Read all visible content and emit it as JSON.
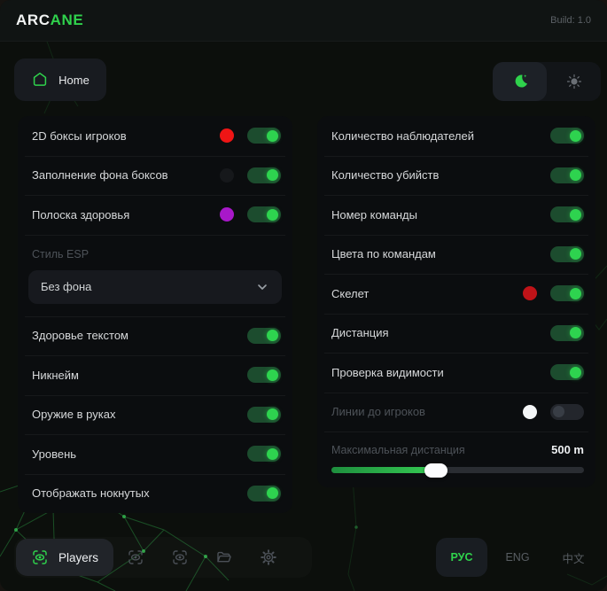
{
  "header": {
    "brand_primary": "ARC",
    "brand_accent": "ANE",
    "build_label": "Build: 1.0"
  },
  "nav": {
    "home_label": "Home"
  },
  "panels": {
    "left": {
      "items": [
        {
          "type": "toggle",
          "label": "2D боксы игроков",
          "color": "#ef1515",
          "on": true
        },
        {
          "type": "toggle",
          "label": "Заполнение фона боксов",
          "color": "#16181b",
          "on": true
        },
        {
          "type": "toggle",
          "label": "Полоска здоровья",
          "color": "#a818c9",
          "on": true
        },
        {
          "type": "select",
          "label": "Стиль ESP",
          "value": "Без фона"
        },
        {
          "type": "toggle",
          "label": "Здоровье текстом",
          "on": true
        },
        {
          "type": "toggle",
          "label": "Никнейм",
          "on": true
        },
        {
          "type": "toggle",
          "label": "Оружие в руках",
          "on": true
        },
        {
          "type": "toggle",
          "label": "Уровень",
          "on": true
        },
        {
          "type": "toggle",
          "label": "Отображать нокнутых",
          "on": true
        }
      ]
    },
    "right": {
      "items": [
        {
          "type": "toggle",
          "label": "Количество наблюдателей",
          "on": true
        },
        {
          "type": "toggle",
          "label": "Количество убийств",
          "on": true
        },
        {
          "type": "toggle",
          "label": "Номер команды",
          "on": true
        },
        {
          "type": "toggle",
          "label": "Цвета по командам",
          "on": true
        },
        {
          "type": "toggle",
          "label": "Скелет",
          "color": "#bf1318",
          "on": true
        },
        {
          "type": "toggle",
          "label": "Дистанция",
          "on": true
        },
        {
          "type": "toggle",
          "label": "Проверка видимости",
          "on": true
        },
        {
          "type": "toggle",
          "label": "Линии до игроков",
          "color": "#f4f6f7",
          "on": false,
          "dimmed": true
        },
        {
          "type": "slider",
          "label": "Максимальная дистанция",
          "value": "500 m",
          "percent": 46,
          "dimmed": true
        }
      ]
    }
  },
  "footer": {
    "players_label": "Players",
    "languages": [
      {
        "label": "РУС",
        "active": true
      },
      {
        "label": "ENG",
        "active": false
      },
      {
        "label": "中文",
        "active": false
      }
    ]
  },
  "icons": {
    "nav": "home-icon",
    "theme": [
      "moon-icon",
      "sun-icon"
    ],
    "players_tab": "eye-scan-icon",
    "toolbar": [
      "eye-scan-icon",
      "eye-scan-icon",
      "folder-icon",
      "gear-icon"
    ],
    "dropdown": "chevron-down-icon"
  },
  "colors": {
    "accent": "#2fd24c",
    "toggle_on_track": "#1c4c2e",
    "toggle_on_knob": "#2ed34f",
    "toggle_off_track": "#23262c",
    "panel_bg": "#0b0d0f",
    "window_bg": "#0c0f0c",
    "slider_fill_start": "#1e8f3e",
    "slider_fill_end": "#38d155"
  }
}
